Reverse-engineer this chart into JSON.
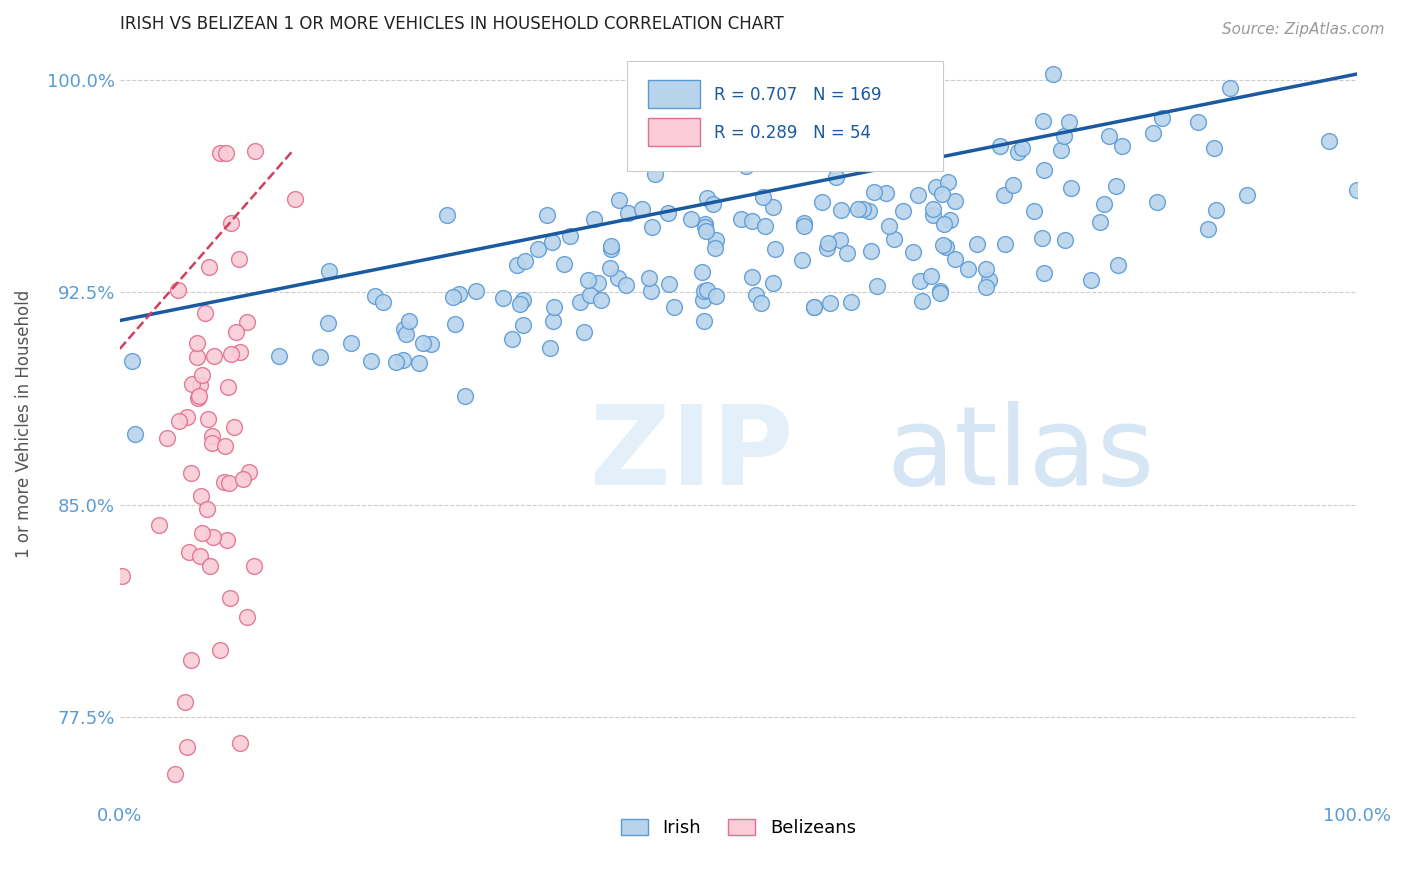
{
  "title": "IRISH VS BELIZEAN 1 OR MORE VEHICLES IN HOUSEHOLD CORRELATION CHART",
  "source_text": "Source: ZipAtlas.com",
  "ylabel": "1 or more Vehicles in Household",
  "xlim": [
    0.0,
    1.0
  ],
  "ylim": [
    0.745,
    1.012
  ],
  "yticks": [
    0.775,
    0.85,
    0.925,
    1.0
  ],
  "ytick_labels": [
    "77.5%",
    "85.0%",
    "92.5%",
    "100.0%"
  ],
  "xtick_positions": [
    0.0,
    0.1,
    0.2,
    0.3,
    0.4,
    0.5,
    0.6,
    0.7,
    0.8,
    0.9,
    1.0
  ],
  "xtick_labels": [
    "0.0%",
    "",
    "",
    "",
    "",
    "",
    "",
    "",
    "",
    "",
    "100.0%"
  ],
  "irish_R": 0.707,
  "irish_N": 169,
  "belizean_R": 0.289,
  "belizean_N": 54,
  "irish_color": "#b8d4ec",
  "irish_edge_color": "#5b9bd5",
  "belizean_color": "#f9ccd8",
  "belizean_edge_color": "#e07090",
  "irish_line_color": "#1a5aa0",
  "belizean_line_color": "#d04060",
  "legend_box_color_irish": "#b8d4ec",
  "legend_box_color_belizean": "#f9ccd8",
  "legend_text_color": "#1a5aa0",
  "watermark_zip": "ZIP",
  "watermark_atlas": "atlas",
  "background_color": "#ffffff",
  "grid_color": "#cccccc",
  "title_color": "#222222",
  "axis_label_color": "#555555",
  "tick_color": "#5b9bd5"
}
